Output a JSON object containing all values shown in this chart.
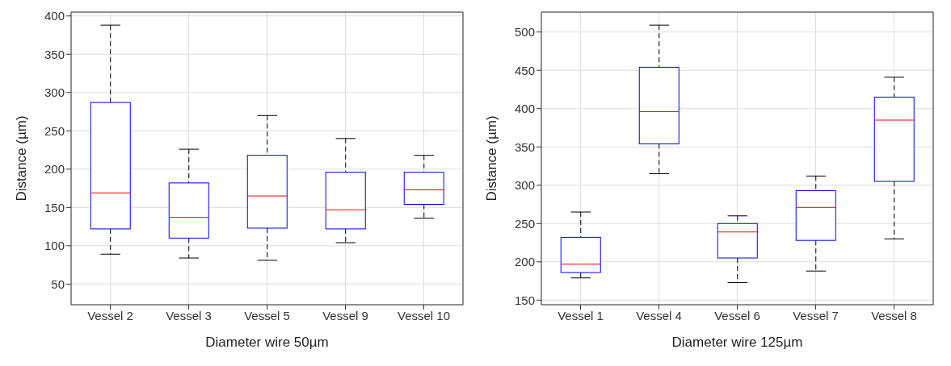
{
  "chart_data": [
    {
      "type": "box",
      "xlabel": "Diameter wire 50µm",
      "ylabel": "Distance (µm)",
      "categories": [
        "Vessel 2",
        "Vessel 3",
        "Vessel 5",
        "Vessel 9",
        "Vessel 10"
      ],
      "color": "#0000ff",
      "grid": true,
      "ylim": [
        23,
        405
      ],
      "yticks": [
        50,
        100,
        150,
        200,
        250,
        300,
        350,
        400
      ],
      "boxes": [
        {
          "low": 89,
          "q1": 122,
          "median": 169,
          "q3": 287,
          "high": 388
        },
        {
          "low": 84,
          "q1": 110,
          "median": 137,
          "q3": 182,
          "high": 226
        },
        {
          "low": 81,
          "q1": 123,
          "median": 165,
          "q3": 218,
          "high": 270
        },
        {
          "low": 104,
          "q1": 122,
          "median": 147,
          "q3": 196,
          "high": 240
        },
        {
          "low": 136,
          "q1": 154,
          "median": 173,
          "q3": 196,
          "high": 218
        }
      ]
    },
    {
      "type": "box",
      "xlabel": "Diameter wire 125µm",
      "ylabel": "Distance (µm)",
      "categories": [
        "Vessel 1",
        "Vessel 4",
        "Vessel 6",
        "Vessel 7",
        "Vessel 8"
      ],
      "color": "#0000ff",
      "grid": true,
      "ylim": [
        144,
        526
      ],
      "yticks": [
        150,
        200,
        250,
        300,
        350,
        400,
        450,
        500
      ],
      "boxes": [
        {
          "low": 179,
          "q1": 186,
          "median": 197,
          "q3": 232,
          "high": 265
        },
        {
          "low": 315,
          "q1": 354,
          "median": 396,
          "q3": 454,
          "high": 509
        },
        {
          "low": 173,
          "q1": 205,
          "median": 239,
          "q3": 250,
          "high": 260
        },
        {
          "low": 188,
          "q1": 228,
          "median": 271,
          "q3": 293,
          "high": 312
        },
        {
          "low": 230,
          "q1": 305,
          "median": 385,
          "q3": 415,
          "high": 441
        }
      ]
    }
  ]
}
